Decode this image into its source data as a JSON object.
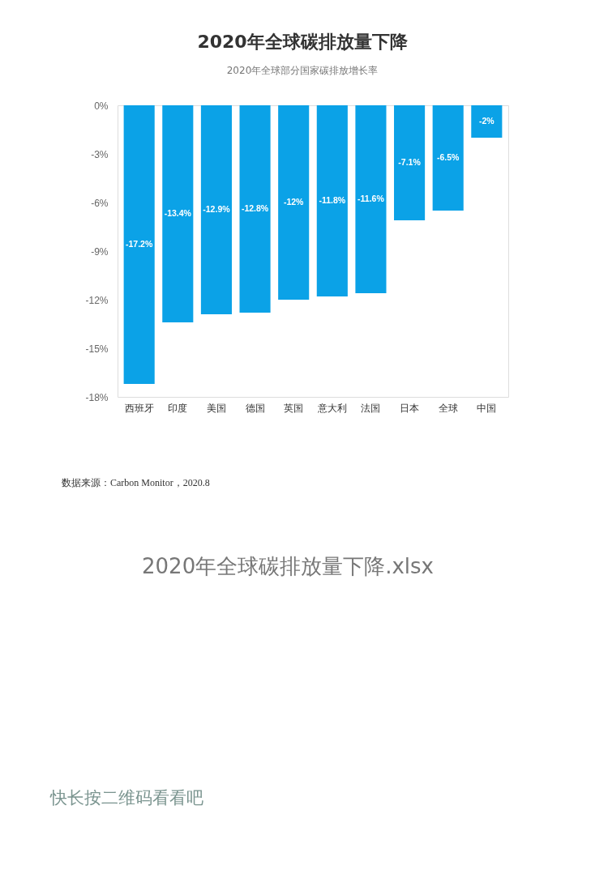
{
  "chart_data": {
    "type": "bar",
    "title": "2020年全球碳排放量下降",
    "subtitle": "2020年全球部分国家碳排放增长率",
    "categories": [
      "西班牙",
      "印度",
      "美国",
      "德国",
      "英国",
      "意大利",
      "法国",
      "日本",
      "全球",
      "中国"
    ],
    "values": [
      -17.2,
      -13.4,
      -12.9,
      -12.8,
      -12,
      -11.8,
      -11.6,
      -7.1,
      -6.5,
      -2
    ],
    "color": "#0ba2e7",
    "value_labels": [
      "-17.2%",
      "-13.4%",
      "-12.9%",
      "-12.8%",
      "-12%",
      "-11.8%",
      "-11.6%",
      "-7.1%",
      "-6.5%",
      "-2%"
    ],
    "ylim": [
      -18,
      0
    ],
    "yticks": [
      {
        "value": 0,
        "label": "0%"
      },
      {
        "value": -3,
        "label": "-3%"
      },
      {
        "value": -6,
        "label": "-6%"
      },
      {
        "value": -9,
        "label": "-9%"
      },
      {
        "value": -12,
        "label": "-12%"
      },
      {
        "value": -15,
        "label": "-15%"
      },
      {
        "value": -18,
        "label": "-18%"
      }
    ],
    "grid": false,
    "annotations": [
      "数据来源：Carbon Monitor，2020.8",
      "2020年全球碳排放量下降.xlsx",
      "快长按二维码看看吧"
    ]
  }
}
